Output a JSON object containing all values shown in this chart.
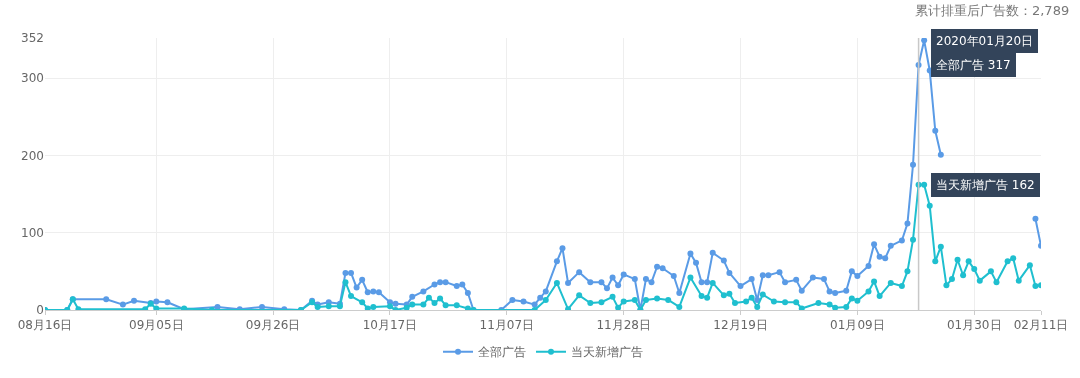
{
  "chart_data": {
    "type": "line",
    "title": "累计排重后广告数：2,789",
    "xlim": [
      "2019-08-16",
      "2020-02-11"
    ],
    "xticks": [
      {
        "value": "2019-08-16",
        "label": "08月16日"
      },
      {
        "value": "2019-09-05",
        "label": "09月05日"
      },
      {
        "value": "2019-09-26",
        "label": "09月26日"
      },
      {
        "value": "2019-10-17",
        "label": "10月17日"
      },
      {
        "value": "2019-11-07",
        "label": "11月07日"
      },
      {
        "value": "2019-11-28",
        "label": "11月28日"
      },
      {
        "value": "2019-12-19",
        "label": "12月19日"
      },
      {
        "value": "2020-01-09",
        "label": "01月09日"
      },
      {
        "value": "2020-01-30",
        "label": "01月30日"
      },
      {
        "value": "2020-02-11",
        "label": "02月11日"
      }
    ],
    "ylim": [
      0,
      352
    ],
    "yticks": [
      0,
      100,
      200,
      300,
      352
    ],
    "grid": true,
    "legend": "bottom",
    "marker": "circle",
    "line_style": "solid",
    "ref_lines": [
      {
        "axis": "x",
        "value": "2020-01-20",
        "color": "#c8c8c8"
      }
    ],
    "annotations": [
      "2020年01月20日",
      {
        "text": "全部广告 317",
        "x": "2020-01-20",
        "y": 317
      },
      {
        "text": "当天新增广告 162",
        "x": "2020-01-20",
        "y": 162
      }
    ],
    "series": [
      {
        "name": "全部广告",
        "color": "#5a9be6",
        "x": [
          "2019-08-16",
          "2019-08-20",
          "2019-08-21",
          "2019-08-27",
          "2019-08-30",
          "2019-09-01",
          "2019-09-04",
          "2019-09-05",
          "2019-09-07",
          "2019-09-10",
          "2019-09-16",
          "2019-09-20",
          "2019-09-24",
          "2019-09-28",
          "2019-10-01",
          "2019-10-03",
          "2019-10-04",
          "2019-10-06",
          "2019-10-08",
          "2019-10-09",
          "2019-10-10",
          "2019-10-11",
          "2019-10-12",
          "2019-10-13",
          "2019-10-14",
          "2019-10-15",
          "2019-10-17",
          "2019-10-18",
          "2019-10-20",
          "2019-10-21",
          "2019-10-23",
          "2019-10-25",
          "2019-10-26",
          "2019-10-27",
          "2019-10-29",
          "2019-10-30",
          "2019-10-31",
          "2019-11-01",
          "2019-11-06",
          "2019-11-08",
          "2019-11-10",
          "2019-11-12",
          "2019-11-13",
          "2019-11-14",
          "2019-11-16",
          "2019-11-17",
          "2019-11-18",
          "2019-11-20",
          "2019-11-22",
          "2019-11-24",
          "2019-11-25",
          "2019-11-26",
          "2019-11-27",
          "2019-11-28",
          "2019-11-30",
          "2019-12-01",
          "2019-12-02",
          "2019-12-03",
          "2019-12-04",
          "2019-12-05",
          "2019-12-07",
          "2019-12-08",
          "2019-12-10",
          "2019-12-11",
          "2019-12-12",
          "2019-12-13",
          "2019-12-14",
          "2019-12-16",
          "2019-12-17",
          "2019-12-19",
          "2019-12-21",
          "2019-12-22",
          "2019-12-23",
          "2019-12-24",
          "2019-12-26",
          "2019-12-27",
          "2019-12-29",
          "2019-12-30",
          "2020-01-01",
          "2020-01-03",
          "2020-01-04",
          "2020-01-05",
          "2020-01-07",
          "2020-01-08",
          "2020-01-09",
          "2020-01-11",
          "2020-01-12",
          "2020-01-13",
          "2020-01-14",
          "2020-01-15",
          "2020-01-17",
          "2020-01-18",
          "2020-01-19",
          "2020-01-20",
          "2020-01-21",
          "2020-01-22",
          "2020-01-23",
          "2020-01-24",
          "2020-01-25",
          "2020-02-10",
          "2020-02-11"
        ],
        "values": [
          0,
          0,
          14,
          14,
          7,
          12,
          9,
          11,
          10,
          1,
          4,
          1,
          4,
          1,
          0,
          12,
          7,
          10,
          8,
          48,
          48,
          29,
          39,
          23,
          24,
          23,
          10,
          8,
          7,
          17,
          24,
          33,
          36,
          36,
          31,
          33,
          22,
          0,
          0,
          13,
          11,
          7,
          16,
          24,
          63,
          80,
          35,
          49,
          36,
          36,
          28,
          42,
          32,
          46,
          40,
          0,
          40,
          36,
          56,
          54,
          44,
          22,
          73,
          61,
          36,
          36,
          74,
          64,
          48,
          31,
          40,
          13,
          45,
          45,
          49,
          36,
          39,
          25,
          42,
          40,
          24,
          22,
          25,
          50,
          44,
          57,
          85,
          69,
          67,
          83,
          90,
          112,
          188,
          317,
          349,
          310,
          232,
          201,
          null,
          118,
          83
        ]
      },
      {
        "name": "当天新增广告",
        "color": "#1fbfcf",
        "x": [
          "2019-08-16",
          "2019-08-20",
          "2019-08-21",
          "2019-08-22",
          "2019-09-03",
          "2019-09-04",
          "2019-09-05",
          "2019-09-10",
          "2019-09-15",
          "2019-10-01",
          "2019-10-03",
          "2019-10-04",
          "2019-10-06",
          "2019-10-08",
          "2019-10-09",
          "2019-10-10",
          "2019-10-12",
          "2019-10-13",
          "2019-10-14",
          "2019-10-17",
          "2019-10-18",
          "2019-10-20",
          "2019-10-21",
          "2019-10-23",
          "2019-10-24",
          "2019-10-25",
          "2019-10-26",
          "2019-10-27",
          "2019-10-29",
          "2019-10-31",
          "2019-11-01",
          "2019-11-12",
          "2019-11-14",
          "2019-11-16",
          "2019-11-18",
          "2019-11-20",
          "2019-11-22",
          "2019-11-24",
          "2019-11-26",
          "2019-11-27",
          "2019-11-28",
          "2019-11-30",
          "2019-12-01",
          "2019-12-02",
          "2019-12-04",
          "2019-12-06",
          "2019-12-08",
          "2019-12-10",
          "2019-12-12",
          "2019-12-13",
          "2019-12-14",
          "2019-12-16",
          "2019-12-17",
          "2019-12-18",
          "2019-12-20",
          "2019-12-21",
          "2019-12-22",
          "2019-12-23",
          "2019-12-25",
          "2019-12-27",
          "2019-12-29",
          "2019-12-30",
          "2020-01-02",
          "2020-01-04",
          "2020-01-05",
          "2020-01-07",
          "2020-01-08",
          "2020-01-09",
          "2020-01-11",
          "2020-01-12",
          "2020-01-13",
          "2020-01-15",
          "2020-01-17",
          "2020-01-18",
          "2020-01-19",
          "2020-01-20",
          "2020-01-21",
          "2020-01-22",
          "2020-01-23",
          "2020-01-24",
          "2020-01-25",
          "2020-01-26",
          "2020-01-27",
          "2020-01-28",
          "2020-01-29",
          "2020-01-30",
          "2020-01-31",
          "2020-02-02",
          "2020-02-03",
          "2020-02-05",
          "2020-02-06",
          "2020-02-07",
          "2020-02-09",
          "2020-02-10",
          "2020-02-11"
        ],
        "values": [
          0,
          0,
          14,
          1,
          1,
          8,
          2,
          2,
          0,
          0,
          10,
          4,
          5,
          5,
          36,
          18,
          10,
          2,
          4,
          5,
          0,
          3,
          7,
          7,
          16,
          9,
          15,
          6,
          6,
          2,
          0,
          0,
          13,
          35,
          1,
          19,
          9,
          10,
          17,
          3,
          11,
          13,
          0,
          13,
          15,
          13,
          4,
          42,
          18,
          16,
          35,
          19,
          21,
          9,
          11,
          16,
          4,
          20,
          11,
          10,
          10,
          2,
          9,
          7,
          3,
          4,
          15,
          12,
          24,
          37,
          18,
          35,
          31,
          50,
          91,
          162,
          162,
          135,
          63,
          82,
          32,
          40,
          65,
          45,
          63,
          53,
          38,
          50,
          36,
          63,
          67,
          38,
          58,
          31,
          32
        ]
      }
    ]
  }
}
